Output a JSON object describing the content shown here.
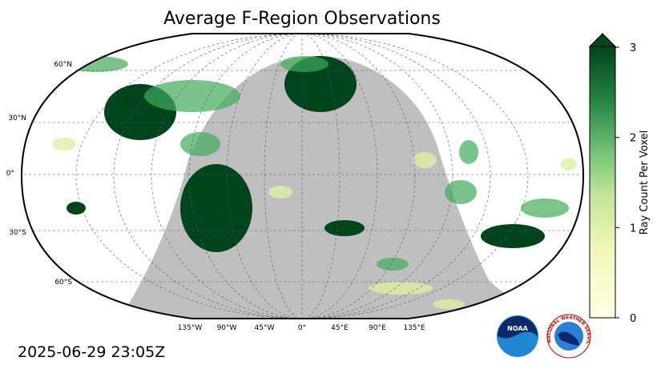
{
  "title": "Average F-Region Observations",
  "lat_labels": [
    "60°N",
    "30°N",
    "0°",
    "30°S",
    "60°S"
  ],
  "lon_labels": [
    "135°W",
    "90°W",
    "45°W",
    "0°",
    "45°E",
    "90°E",
    "135°E"
  ],
  "colorbar": {
    "label": "Ray Count Per Voxel",
    "lim": [
      0,
      3
    ],
    "ticks": [
      0,
      1,
      2,
      3
    ]
  },
  "timestamp": "2025-06-29 23:05Z",
  "logos": {
    "noaa": "NOAA",
    "nws": "NATIONAL WEATHER SERVICE"
  }
}
